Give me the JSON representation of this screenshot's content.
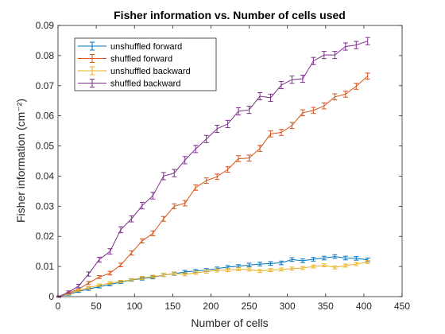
{
  "chart_data": {
    "type": "line",
    "title": "Fisher information vs. Number of cells used",
    "xlabel": "Number of cells",
    "ylabel": "Fisher information (cm⁻²)",
    "xlim": [
      0,
      450
    ],
    "ylim": [
      0,
      0.09
    ],
    "xticks": [
      0,
      50,
      100,
      150,
      200,
      250,
      300,
      350,
      400,
      450
    ],
    "yticks": [
      0,
      0.01,
      0.02,
      0.03,
      0.04,
      0.05,
      0.06,
      0.07,
      0.08,
      0.09
    ],
    "ytick_labels": [
      "0",
      "0.01",
      "0.02",
      "0.03",
      "0.04",
      "0.05",
      "0.06",
      "0.07",
      "0.08",
      "0.09"
    ],
    "grid": false,
    "legend_position": "top-left",
    "x": [
      1,
      14,
      27,
      40,
      54,
      68,
      82,
      96,
      110,
      124,
      138,
      152,
      166,
      180,
      194,
      208,
      222,
      236,
      250,
      264,
      278,
      292,
      306,
      320,
      334,
      348,
      362,
      376,
      390,
      405
    ],
    "series": [
      {
        "name": "unshuffled forward",
        "color": "#0072BD",
        "values": [
          0.0,
          0.0008,
          0.0017,
          0.0025,
          0.0033,
          0.004,
          0.0048,
          0.0055,
          0.006,
          0.0064,
          0.0072,
          0.0076,
          0.0082,
          0.0085,
          0.0088,
          0.0093,
          0.0098,
          0.0101,
          0.0105,
          0.0108,
          0.011,
          0.0112,
          0.0123,
          0.0119,
          0.0124,
          0.0128,
          0.0133,
          0.0128,
          0.0127,
          0.0122
        ],
        "errors": [
          0.0002,
          0.0003,
          0.0003,
          0.0004,
          0.0004,
          0.0004,
          0.0004,
          0.0004,
          0.0005,
          0.0005,
          0.0005,
          0.0005,
          0.0005,
          0.0005,
          0.0005,
          0.0005,
          0.0005,
          0.0005,
          0.0006,
          0.0006,
          0.0006,
          0.0006,
          0.0006,
          0.0006,
          0.0006,
          0.0006,
          0.0006,
          0.0006,
          0.0006,
          0.0006
        ]
      },
      {
        "name": "shuffled forward",
        "color": "#D95319",
        "values": [
          0.0,
          0.0012,
          0.0025,
          0.0045,
          0.0065,
          0.0078,
          0.0105,
          0.0145,
          0.0185,
          0.021,
          0.0258,
          0.03,
          0.031,
          0.0362,
          0.0385,
          0.0398,
          0.0422,
          0.0458,
          0.046,
          0.0492,
          0.054,
          0.0545,
          0.0568,
          0.061,
          0.0618,
          0.0633,
          0.0663,
          0.0672,
          0.0698,
          0.0732
        ],
        "errors": [
          0.0002,
          0.0003,
          0.0004,
          0.0005,
          0.0005,
          0.0006,
          0.0006,
          0.0007,
          0.0007,
          0.0008,
          0.0008,
          0.0008,
          0.0009,
          0.0009,
          0.0009,
          0.0009,
          0.0009,
          0.001,
          0.001,
          0.001,
          0.001,
          0.001,
          0.001,
          0.001,
          0.001,
          0.001,
          0.001,
          0.001,
          0.001,
          0.001
        ]
      },
      {
        "name": "unshuffled backward",
        "color": "#EDB120",
        "values": [
          0.0,
          0.001,
          0.0021,
          0.0029,
          0.0038,
          0.0045,
          0.005,
          0.0056,
          0.0062,
          0.0066,
          0.0072,
          0.0077,
          0.0074,
          0.0079,
          0.0083,
          0.0087,
          0.0088,
          0.0091,
          0.009,
          0.0085,
          0.0088,
          0.009,
          0.0093,
          0.0095,
          0.01,
          0.0104,
          0.0097,
          0.0103,
          0.0108,
          0.0115
        ],
        "errors": [
          0.0002,
          0.0003,
          0.0003,
          0.0004,
          0.0004,
          0.0004,
          0.0004,
          0.0004,
          0.0005,
          0.0005,
          0.0005,
          0.0005,
          0.0005,
          0.0005,
          0.0005,
          0.0005,
          0.0005,
          0.0005,
          0.0005,
          0.0005,
          0.0005,
          0.0005,
          0.0005,
          0.0005,
          0.0005,
          0.0005,
          0.0005,
          0.0005,
          0.0005,
          0.0005
        ]
      },
      {
        "name": "shuffled backward",
        "color": "#7E2F8E",
        "values": [
          0.0,
          0.0015,
          0.0035,
          0.0075,
          0.0123,
          0.015,
          0.0222,
          0.0258,
          0.0302,
          0.0335,
          0.04,
          0.041,
          0.0453,
          0.049,
          0.0523,
          0.0557,
          0.0573,
          0.0615,
          0.062,
          0.0665,
          0.066,
          0.0702,
          0.072,
          0.0723,
          0.0782,
          0.0802,
          0.0802,
          0.083,
          0.0835,
          0.0848
        ],
        "errors": [
          0.0002,
          0.0004,
          0.0006,
          0.0007,
          0.0008,
          0.0009,
          0.001,
          0.001,
          0.0011,
          0.0011,
          0.0012,
          0.0012,
          0.0012,
          0.0012,
          0.0012,
          0.0012,
          0.0012,
          0.0012,
          0.0012,
          0.0012,
          0.0012,
          0.0012,
          0.0012,
          0.0012,
          0.0012,
          0.0012,
          0.0012,
          0.0012,
          0.0012,
          0.0012
        ]
      }
    ]
  }
}
